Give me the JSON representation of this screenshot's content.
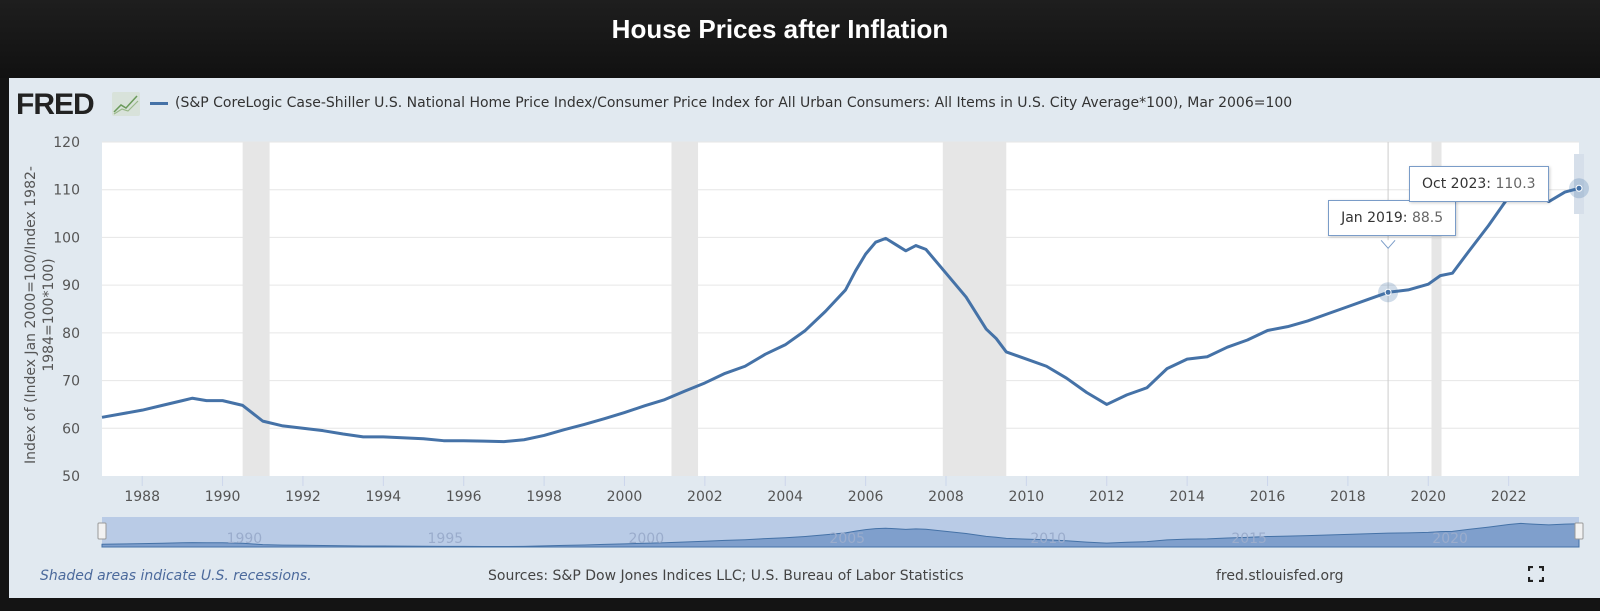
{
  "header": {
    "title": "House Prices after Inflation"
  },
  "logo": "FRED",
  "footer": {
    "recession_note": "Shaded areas indicate U.S. recessions.",
    "sources": "Sources: S&P Dow Jones Indices LLC; U.S. Bureau of Labor Statistics",
    "site": "fred.stlouisfed.org"
  },
  "colors": {
    "series": "#4572a7",
    "recession": "#e6e6e6",
    "panel": "#e1e9f0",
    "navigator": "#b9cbe6"
  },
  "chart_data": {
    "type": "line",
    "legend": "(S&P CoreLogic Case-Shiller U.S. National Home Price Index/Consumer Price Index for All Urban Consumers: All Items in U.S. City Average*100), Mar 2006=100",
    "ylabel": "Index of (Index Jan 2000=100/Index 1982-1984=100*100)",
    "ylim": [
      50,
      120
    ],
    "yticks": [
      50,
      60,
      70,
      80,
      90,
      100,
      110,
      120
    ],
    "xlim": [
      1987.0,
      2023.75
    ],
    "xticks": [
      1988,
      1990,
      1992,
      1994,
      1996,
      1998,
      2000,
      2002,
      2004,
      2006,
      2008,
      2010,
      2012,
      2014,
      2016,
      2018,
      2020,
      2022
    ],
    "navigator_ticks": [
      1990,
      1995,
      2000,
      2005,
      2010,
      2015,
      2020
    ],
    "grid": true,
    "recessions": [
      [
        1990.5,
        1991.17
      ],
      [
        2001.17,
        2001.83
      ],
      [
        2007.92,
        2009.5
      ],
      [
        2020.08,
        2020.33
      ]
    ],
    "x": [
      1987.0,
      1988.0,
      1988.5,
      1989.0,
      1989.25,
      1989.6,
      1990.0,
      1990.5,
      1991.0,
      1991.5,
      1992.0,
      1992.5,
      1993.0,
      1993.5,
      1994.0,
      1995.0,
      1995.5,
      1996.0,
      1996.5,
      1997.0,
      1997.5,
      1998.0,
      1998.5,
      1999.0,
      1999.5,
      2000.0,
      2000.5,
      2001.0,
      2001.5,
      2002.0,
      2002.5,
      2003.0,
      2003.5,
      2004.0,
      2004.5,
      2005.0,
      2005.5,
      2005.75,
      2006.0,
      2006.25,
      2006.5,
      2006.75,
      2007.0,
      2007.25,
      2007.5,
      2008.0,
      2008.5,
      2009.0,
      2009.25,
      2009.5,
      2010.0,
      2010.5,
      2011.0,
      2011.5,
      2012.0,
      2012.5,
      2013.0,
      2013.5,
      2014.0,
      2014.5,
      2015.0,
      2015.5,
      2016.0,
      2016.5,
      2017.0,
      2017.5,
      2018.0,
      2018.5,
      2019.0,
      2019.5,
      2020.0,
      2020.3,
      2020.6,
      2021.0,
      2021.5,
      2022.0,
      2022.3,
      2022.6,
      2023.0,
      2023.4,
      2023.75
    ],
    "y": [
      62.3,
      63.8,
      64.8,
      65.8,
      66.3,
      65.8,
      65.8,
      64.8,
      61.5,
      60.5,
      60.0,
      59.5,
      58.8,
      58.2,
      58.2,
      57.8,
      57.4,
      57.4,
      57.3,
      57.2,
      57.6,
      58.5,
      59.7,
      60.8,
      62.0,
      63.3,
      64.7,
      66.0,
      67.8,
      69.5,
      71.5,
      73.0,
      75.5,
      77.5,
      80.5,
      84.5,
      89.0,
      93.0,
      96.5,
      99.0,
      99.8,
      98.5,
      97.2,
      98.3,
      97.5,
      92.5,
      87.5,
      80.8,
      78.8,
      76.0,
      74.5,
      73.0,
      70.5,
      67.5,
      65.0,
      67.0,
      68.5,
      72.5,
      74.5,
      75.0,
      77.0,
      78.5,
      80.5,
      81.3,
      82.5,
      84.0,
      85.5,
      87.0,
      88.5,
      89.0,
      90.2,
      92.0,
      92.5,
      97.0,
      102.5,
      108.5,
      111.0,
      109.5,
      107.5,
      109.5,
      110.3
    ],
    "tooltips": [
      {
        "date": "Jan 2019",
        "x": 2019.0,
        "value": "88.5"
      },
      {
        "date": "Oct 2023",
        "x": 2023.75,
        "value": "110.3"
      }
    ]
  }
}
